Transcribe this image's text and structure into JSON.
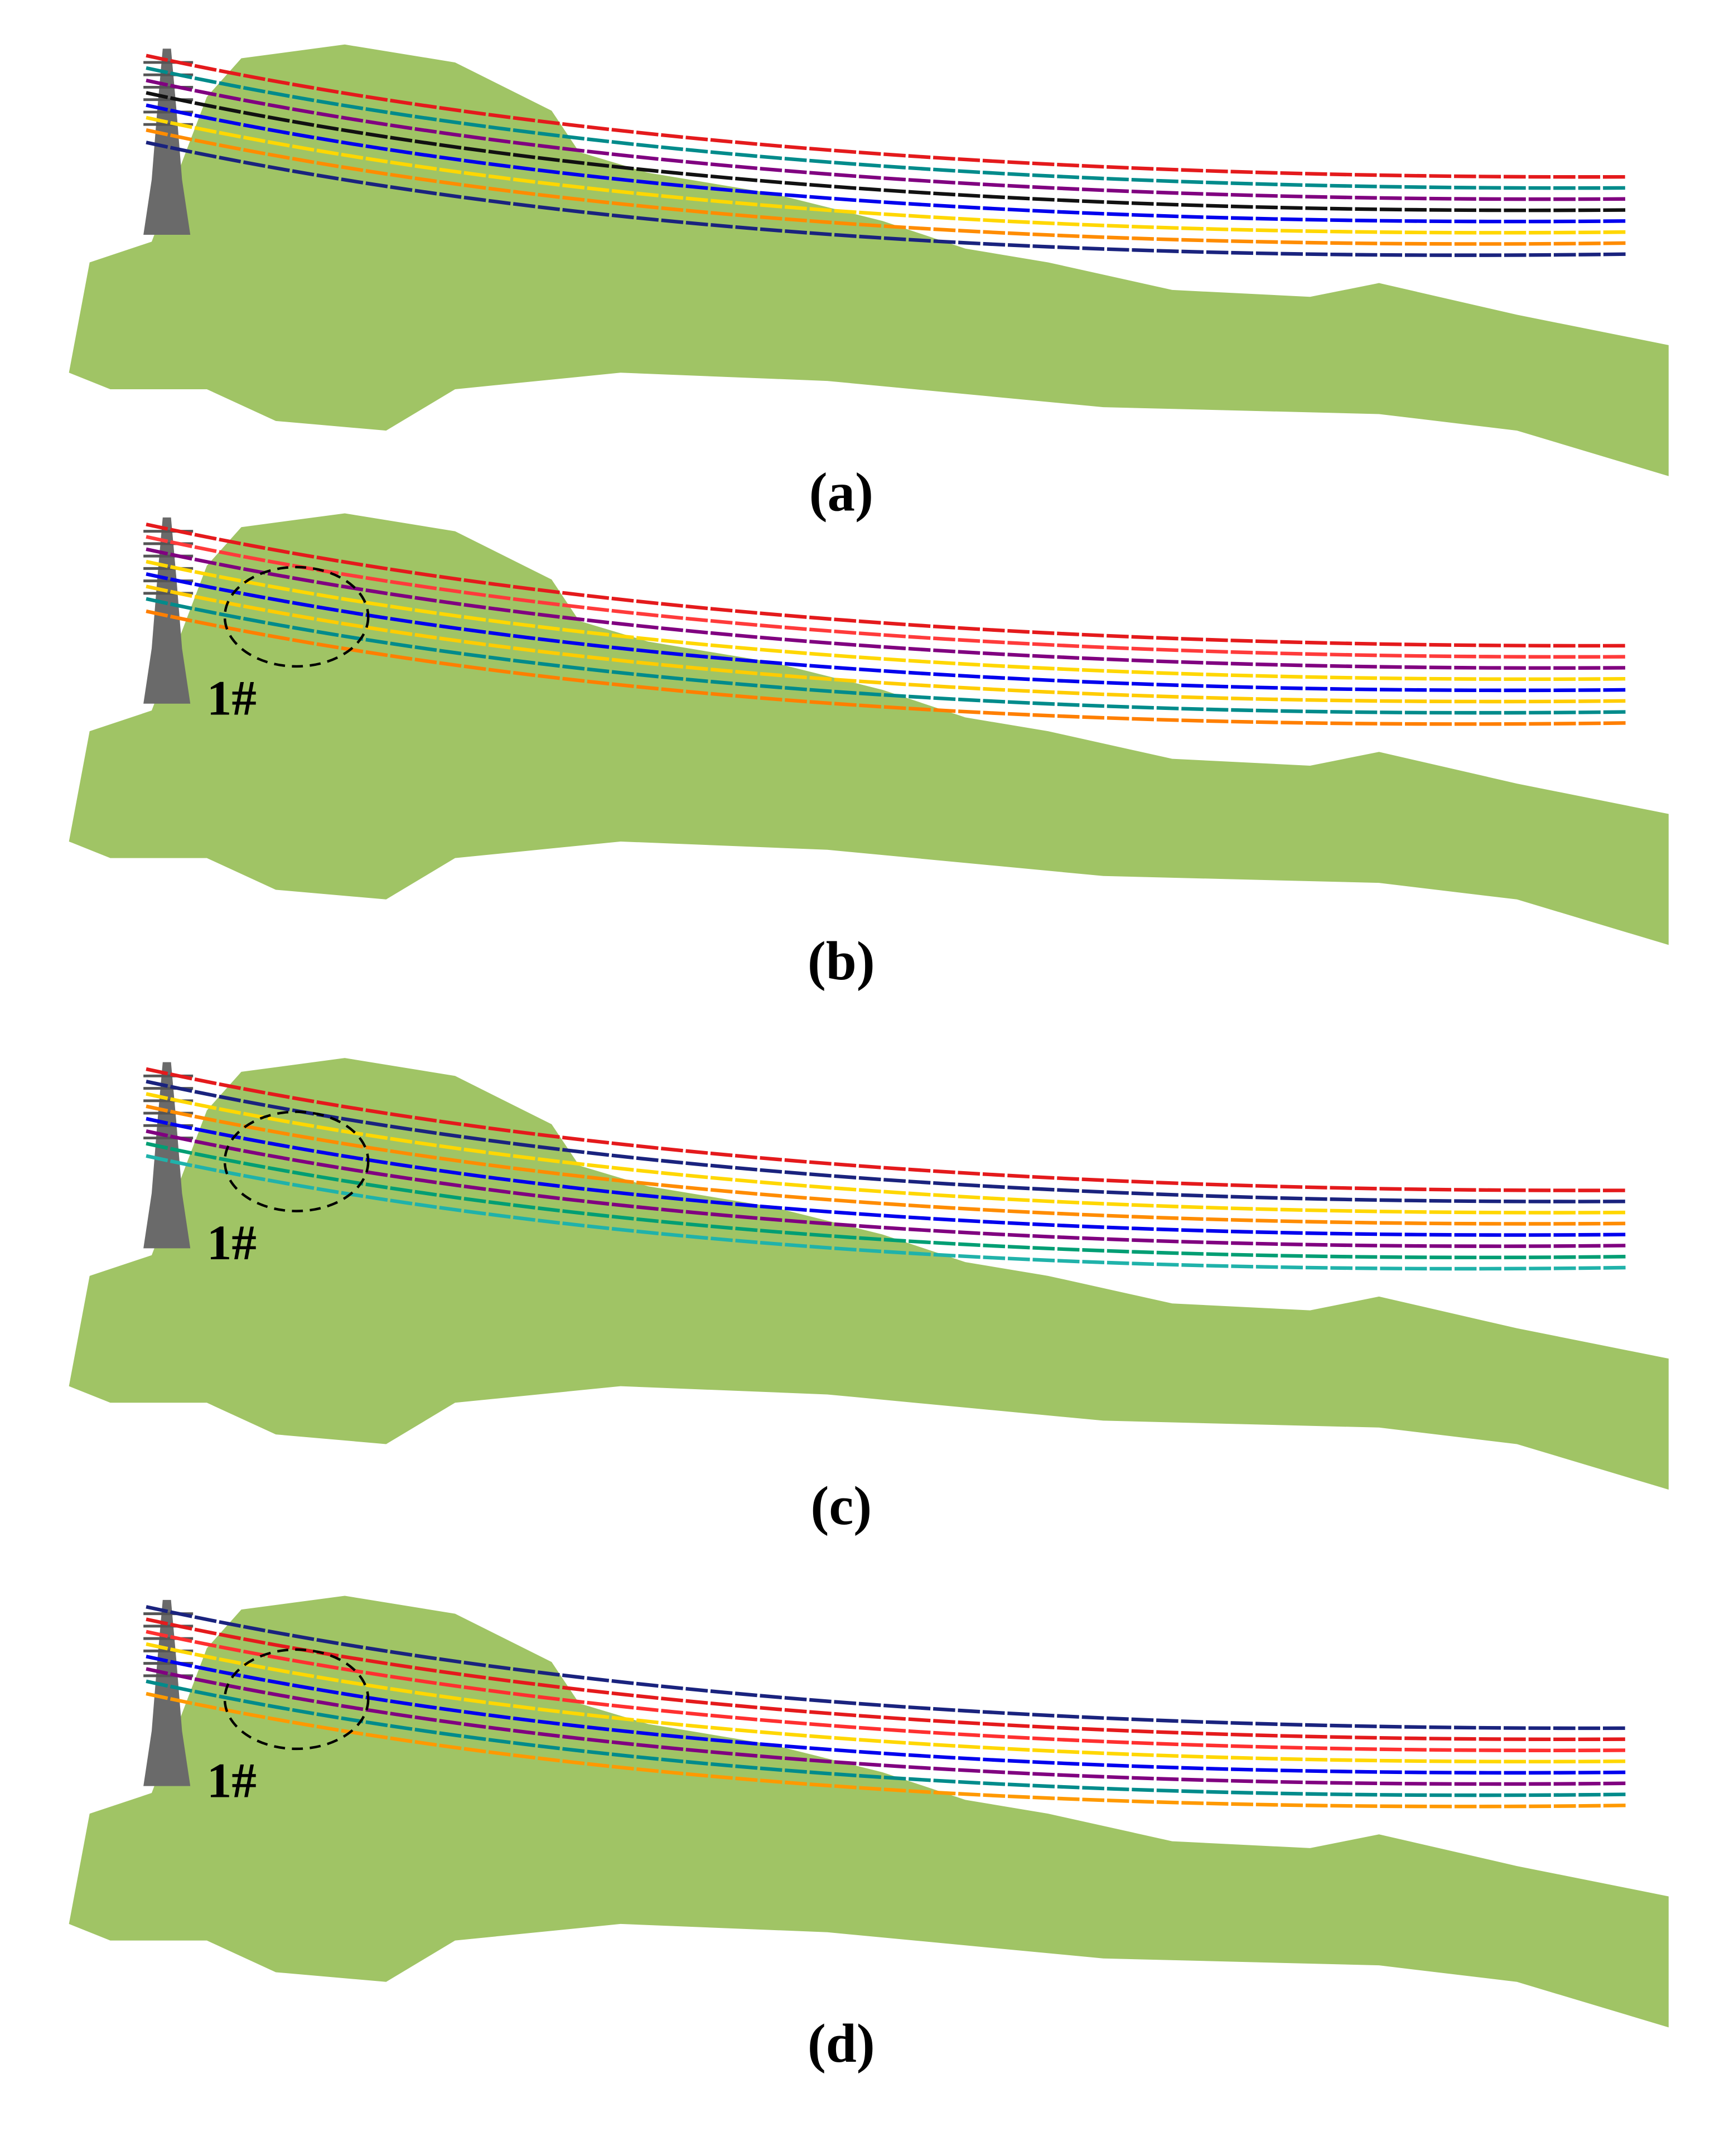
{
  "panels": [
    {
      "label": "(a)"
    },
    {
      "label": "(b)",
      "annotation": "1#"
    },
    {
      "label": "(c)",
      "annotation": "1#"
    },
    {
      "label": "(d)",
      "annotation": "1#"
    }
  ]
}
